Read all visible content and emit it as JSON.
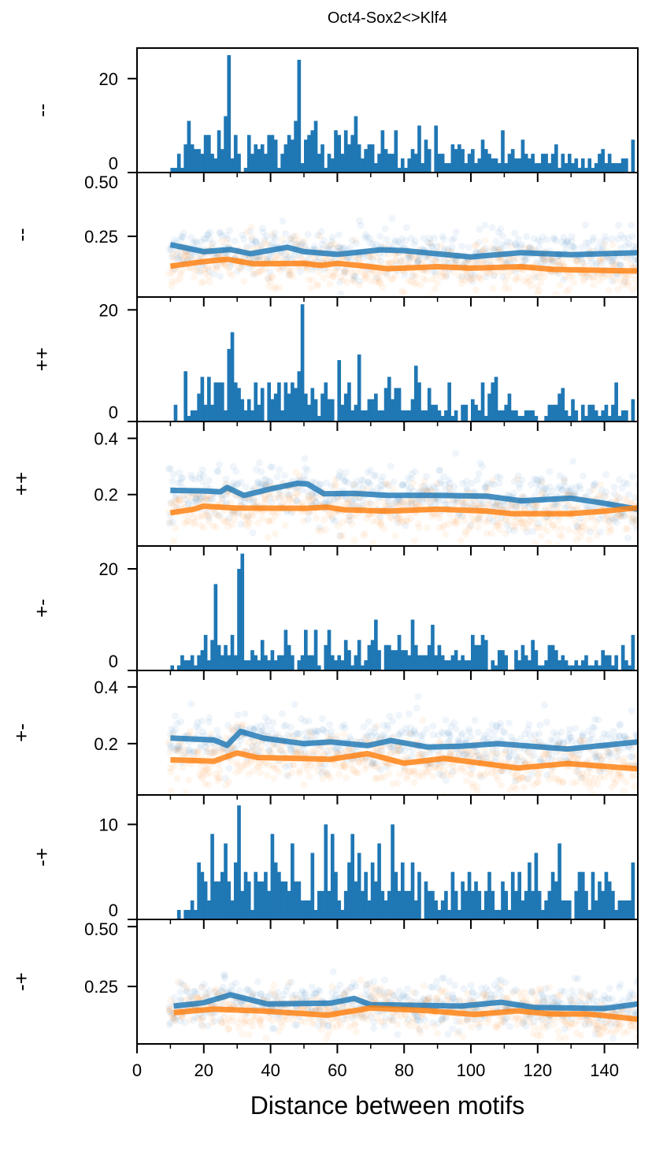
{
  "title": "Oct4-Sox2<>Klf4",
  "chart_data": {
    "type": "multi-panel",
    "xlabel": "Distance between motifs",
    "xlim": [
      0,
      150
    ],
    "xticks": [
      0,
      20,
      40,
      60,
      80,
      100,
      120,
      140
    ],
    "xtick_labels": [
      "0",
      "20",
      "40",
      "60",
      "80",
      "100",
      "120",
      "140"
    ],
    "xminor_ticks": [
      10,
      30,
      50,
      70,
      90,
      110,
      130,
      150
    ],
    "grid": false,
    "colors": {
      "blue": "#1f77b4",
      "orange": "#ff7f0e"
    },
    "panels": [
      {
        "type": "bar",
        "ylabel": "--",
        "ylim": [
          0,
          26.5
        ],
        "yticks": [
          20,
          0
        ],
        "ytick_labels": [
          "20",
          "0"
        ],
        "x_start": 10,
        "bin_width": 1,
        "values": [
          1,
          1,
          4,
          1,
          6,
          11,
          6,
          5,
          5,
          4,
          8,
          8,
          4,
          3,
          9,
          5,
          12,
          25,
          3,
          8,
          4,
          0,
          1,
          8,
          4,
          6,
          5,
          6,
          4,
          8,
          8,
          7,
          1,
          4,
          6,
          8,
          7,
          11,
          24,
          2,
          7,
          8,
          9,
          11,
          4,
          6,
          1,
          4,
          3,
          9,
          8,
          4,
          9,
          6,
          8,
          12,
          6,
          3,
          5,
          6,
          6,
          2,
          4,
          9,
          5,
          4,
          4,
          9,
          1,
          3,
          1,
          3,
          5,
          4,
          10,
          2,
          7,
          5,
          0,
          10,
          4,
          4,
          2,
          2,
          6,
          5,
          6,
          5,
          2,
          4,
          5,
          2,
          3,
          7,
          5,
          4,
          3,
          3,
          2,
          9,
          2,
          4,
          5,
          3,
          3,
          7,
          4,
          3,
          4,
          2,
          2,
          4,
          4,
          2,
          4,
          6,
          1,
          4,
          2,
          4,
          2,
          3,
          1,
          3,
          1,
          3,
          1,
          2,
          4,
          5,
          2,
          4,
          2,
          2,
          2,
          3,
          3,
          0,
          7,
          0
        ]
      },
      {
        "type": "line",
        "ylabel": "--",
        "ylim": [
          0.012,
          0.5
        ],
        "yticks": [
          0.5,
          0.25
        ],
        "ytick_labels": [
          "0.50",
          "0.25"
        ],
        "series": [
          {
            "color": "blue",
            "x": [
              10,
              20,
              28,
              34,
              45,
              50,
              60,
              73,
              80,
              100,
              115,
              130,
              150
            ],
            "y": [
              0.217,
              0.19,
              0.198,
              0.182,
              0.207,
              0.19,
              0.179,
              0.197,
              0.194,
              0.169,
              0.186,
              0.178,
              0.186
            ]
          },
          {
            "color": "orange",
            "x": [
              10,
              20,
              27,
              35,
              50,
              55,
              60,
              70,
              75,
              90,
              100,
              115,
              125,
              150
            ],
            "y": [
              0.133,
              0.151,
              0.16,
              0.142,
              0.144,
              0.136,
              0.144,
              0.131,
              0.123,
              0.131,
              0.125,
              0.131,
              0.12,
              0.114
            ]
          }
        ]
      },
      {
        "type": "bar",
        "ylabel": "++",
        "ylim": [
          0,
          22.3
        ],
        "yticks": [
          20,
          0
        ],
        "ytick_labels": [
          "20",
          "0"
        ],
        "x_start": 10,
        "bin_width": 1,
        "values": [
          0,
          3,
          0,
          0,
          9,
          1,
          2,
          2,
          5,
          8,
          3,
          8,
          3,
          7,
          7,
          7,
          2,
          13,
          16,
          7,
          6,
          4,
          2,
          4,
          2,
          7,
          3,
          6,
          0,
          7,
          4,
          5,
          7,
          2,
          7,
          5,
          7,
          6,
          9,
          21,
          5,
          3,
          6,
          4,
          1,
          5,
          7,
          4,
          4,
          0,
          11,
          3,
          5,
          7,
          2,
          3,
          12,
          2,
          2,
          4,
          4,
          5,
          2,
          2,
          6,
          8,
          4,
          6,
          6,
          2,
          2,
          2,
          4,
          10,
          7,
          2,
          2,
          6,
          3,
          3,
          2,
          1,
          2,
          7,
          1,
          2,
          0,
          3,
          3,
          0,
          4,
          3,
          2,
          7,
          1,
          5,
          7,
          8,
          2,
          2,
          3,
          5,
          2,
          2,
          1,
          1,
          2,
          2,
          2,
          1,
          0,
          0,
          1,
          3,
          3,
          3,
          5,
          6,
          2,
          1,
          4,
          2,
          0,
          3,
          1,
          3,
          3,
          2,
          1,
          2,
          3,
          1,
          3,
          7,
          1,
          2,
          2,
          0,
          4,
          0
        ]
      },
      {
        "type": "line",
        "ylabel": "++",
        "ylim": [
          0.017,
          0.46
        ],
        "yticks": [
          0.4,
          0.2
        ],
        "ytick_labels": [
          "0.4",
          "0.2"
        ],
        "series": [
          {
            "color": "blue",
            "x": [
              10,
              20,
              25,
              27,
              32,
              40,
              48,
              51,
              56,
              65,
              75,
              90,
              105,
              110,
              115,
              130,
              140,
              150
            ],
            "y": [
              0.215,
              0.213,
              0.21,
              0.225,
              0.197,
              0.22,
              0.24,
              0.238,
              0.203,
              0.204,
              0.197,
              0.197,
              0.194,
              0.186,
              0.178,
              0.187,
              0.169,
              0.148
            ]
          },
          {
            "color": "orange",
            "x": [
              10,
              17,
              20,
              25,
              30,
              50,
              57,
              62,
              75,
              90,
              105,
              112,
              130,
              140,
              150
            ],
            "y": [
              0.135,
              0.148,
              0.159,
              0.155,
              0.152,
              0.151,
              0.155,
              0.146,
              0.141,
              0.148,
              0.141,
              0.132,
              0.132,
              0.141,
              0.153
            ]
          }
        ]
      },
      {
        "type": "bar",
        "ylabel": "+-",
        "ylim": [
          0,
          24.5
        ],
        "yticks": [
          20,
          0
        ],
        "ytick_labels": [
          "20",
          "0"
        ],
        "x_start": 10,
        "bin_width": 1,
        "values": [
          1,
          0,
          1,
          3,
          2,
          2,
          3,
          1,
          3,
          4,
          7,
          2,
          6,
          17,
          5,
          3,
          5,
          3,
          7,
          3,
          20,
          23,
          2,
          2,
          4,
          3,
          2,
          6,
          3,
          2,
          4,
          2,
          3,
          3,
          8,
          5,
          3,
          0,
          2,
          3,
          8,
          3,
          3,
          8,
          1,
          0,
          5,
          8,
          3,
          2,
          3,
          2,
          6,
          4,
          1,
          3,
          6,
          1,
          2,
          5,
          6,
          10,
          4,
          0,
          5,
          5,
          4,
          4,
          7,
          4,
          4,
          3,
          10,
          5,
          3,
          3,
          3,
          5,
          9,
          3,
          5,
          3,
          2,
          2,
          3,
          4,
          2,
          3,
          2,
          2,
          7,
          5,
          5,
          7,
          6,
          0,
          2,
          1,
          4,
          4,
          3,
          0,
          0,
          4,
          2,
          5,
          3,
          2,
          6,
          4,
          1,
          1,
          2,
          5,
          5,
          4,
          2,
          3,
          2,
          1,
          1,
          2,
          1,
          2,
          3,
          1,
          1,
          2,
          1,
          4,
          3,
          3,
          1,
          3,
          0,
          5,
          2,
          1,
          7,
          0
        ]
      },
      {
        "type": "line",
        "ylabel": "+-",
        "ylim": [
          0.019,
          0.458
        ],
        "yticks": [
          0.4,
          0.2
        ],
        "ytick_labels": [
          "0.4",
          "0.2"
        ],
        "series": [
          {
            "color": "blue",
            "x": [
              10,
              23,
              27,
              31,
              38,
              50,
              58,
              69,
              76,
              87,
              97,
              108,
              129,
              150
            ],
            "y": [
              0.22,
              0.213,
              0.194,
              0.243,
              0.219,
              0.2,
              0.206,
              0.193,
              0.211,
              0.188,
              0.191,
              0.2,
              0.181,
              0.206
            ]
          },
          {
            "color": "orange",
            "x": [
              10,
              23,
              30,
              36,
              58,
              69,
              80,
              92,
              114,
              129,
              150
            ],
            "y": [
              0.143,
              0.138,
              0.167,
              0.151,
              0.145,
              0.165,
              0.131,
              0.148,
              0.114,
              0.13,
              0.111
            ]
          }
        ]
      },
      {
        "type": "bar",
        "ylabel": "-+",
        "ylim": [
          0,
          13.1
        ],
        "yticks": [
          10,
          0
        ],
        "ytick_labels": [
          "10",
          "0"
        ],
        "x_start": 10,
        "bin_width": 1,
        "values": [
          0,
          0,
          1,
          0,
          1,
          1,
          2,
          1,
          6,
          5,
          4,
          2,
          9,
          4,
          4,
          5,
          8,
          4,
          2,
          6,
          12,
          3,
          5,
          4,
          1,
          5,
          4,
          4,
          5,
          3,
          9,
          6,
          5,
          4,
          4,
          3,
          8,
          4,
          4,
          2,
          2,
          2,
          7,
          1,
          3,
          3,
          10,
          3,
          9,
          5,
          2,
          1,
          3,
          6,
          9,
          4,
          7,
          3,
          5,
          2,
          6,
          4,
          8,
          3,
          2,
          3,
          10,
          5,
          3,
          6,
          3,
          3,
          6,
          2,
          5,
          0,
          4,
          3,
          3,
          2,
          1,
          2,
          3,
          1,
          5,
          3,
          1,
          4,
          3,
          5,
          3,
          4,
          3,
          1,
          3,
          5,
          3,
          1,
          1,
          4,
          3,
          1,
          5,
          3,
          5,
          2,
          3,
          6,
          3,
          7,
          3,
          1,
          2,
          3,
          5,
          4,
          8,
          2,
          2,
          2,
          0,
          3,
          5,
          5,
          3,
          1,
          5,
          2,
          4,
          3,
          5,
          4,
          3,
          1,
          2,
          2,
          2,
          2,
          6,
          0
        ]
      },
      {
        "type": "line",
        "ylabel": "-+",
        "ylim": [
          0.01,
          0.53
        ],
        "yticks": [
          0.5,
          0.25
        ],
        "ytick_labels": [
          "0.50",
          "0.25"
        ],
        "series": [
          {
            "color": "blue",
            "x": [
              11,
              20,
              28,
              39,
              58,
              65,
              70,
              97,
              109,
              119,
              140,
              150
            ],
            "y": [
              0.168,
              0.182,
              0.215,
              0.177,
              0.18,
              0.2,
              0.174,
              0.168,
              0.184,
              0.162,
              0.158,
              0.177
            ]
          },
          {
            "color": "orange",
            "x": [
              11,
              23,
              37,
              57,
              70,
              87,
              101,
              114,
              124,
              135,
              150
            ],
            "y": [
              0.141,
              0.155,
              0.148,
              0.13,
              0.16,
              0.149,
              0.133,
              0.148,
              0.135,
              0.135,
              0.113
            ]
          }
        ]
      }
    ]
  }
}
